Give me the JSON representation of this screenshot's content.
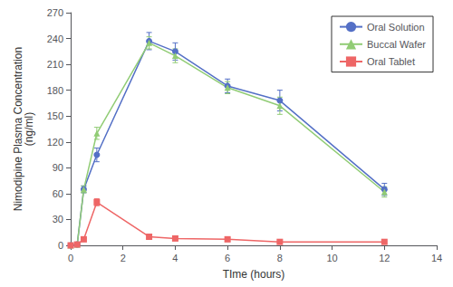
{
  "chart_data": {
    "type": "line",
    "title": "",
    "xlabel": "TIme (hours)",
    "ylabel": "Nimodipine Plasma Concentration\n(ng/ml)",
    "xlim": [
      0,
      14
    ],
    "ylim": [
      0,
      270
    ],
    "xticks": [
      0,
      2,
      4,
      6,
      8,
      10,
      12,
      14
    ],
    "yticks": [
      0,
      30,
      60,
      90,
      120,
      150,
      180,
      210,
      240,
      270
    ],
    "grid": false,
    "legend": "upper right",
    "series": [
      {
        "name": "Oral Solution",
        "marker": "circle",
        "x": [
          0,
          0.25,
          0.5,
          1,
          3,
          4,
          6,
          8,
          12
        ],
        "values": [
          0,
          1,
          65,
          105,
          237,
          225,
          185,
          168,
          65
        ],
        "yerr": [
          0,
          0.5,
          4,
          8,
          10,
          10,
          8,
          12,
          7
        ]
      },
      {
        "name": "Buccal Wafer",
        "marker": "triangle",
        "x": [
          0,
          0.25,
          0.5,
          1,
          3,
          4,
          6,
          8,
          12
        ],
        "values": [
          0,
          1,
          65,
          130,
          235,
          220,
          183,
          162,
          62
        ],
        "yerr": [
          0,
          0.5,
          4,
          7,
          7,
          8,
          7,
          10,
          6
        ]
      },
      {
        "name": "Oral Tablet",
        "marker": "square",
        "x": [
          0,
          0.25,
          0.5,
          1,
          3,
          4,
          6,
          8,
          12
        ],
        "values": [
          0,
          1,
          7,
          50,
          10,
          8,
          7,
          4,
          4
        ],
        "yerr": [
          0,
          0.5,
          1,
          4,
          2,
          2,
          2,
          1,
          1
        ]
      }
    ]
  }
}
